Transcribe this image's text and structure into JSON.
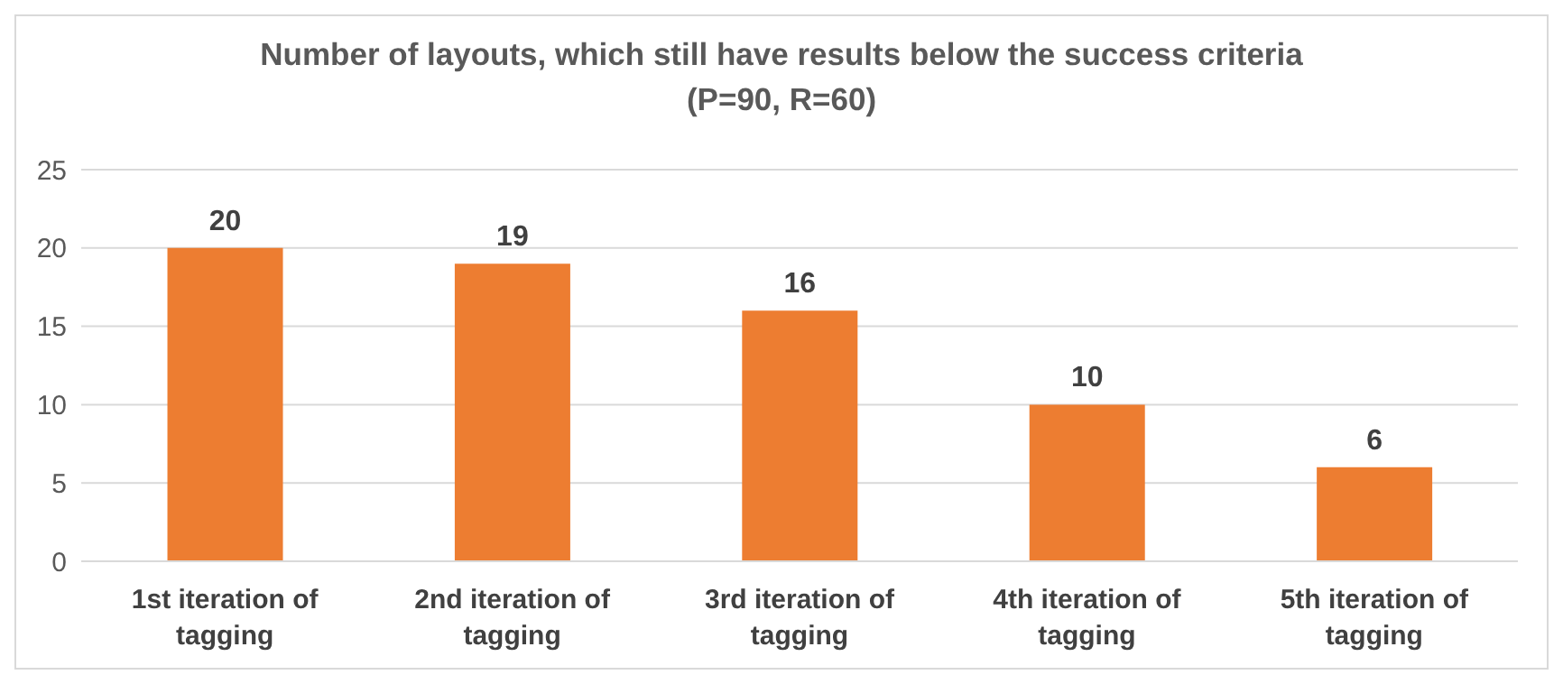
{
  "chart_data": {
    "type": "bar",
    "title": "Number of layouts, which still have results below the success criteria\n(P=90, R=60)",
    "categories": [
      "1st iteration of tagging",
      "2nd iteration of tagging",
      "3rd iteration of tagging",
      "4th iteration of tagging",
      "5th iteration of tagging"
    ],
    "values": [
      20,
      19,
      16,
      10,
      6
    ],
    "color": "#ed7d31",
    "ylim": [
      0,
      25
    ],
    "yticks": [
      0,
      5,
      10,
      15,
      20,
      25
    ],
    "grid": "y",
    "data_labels": true,
    "legend": false
  }
}
